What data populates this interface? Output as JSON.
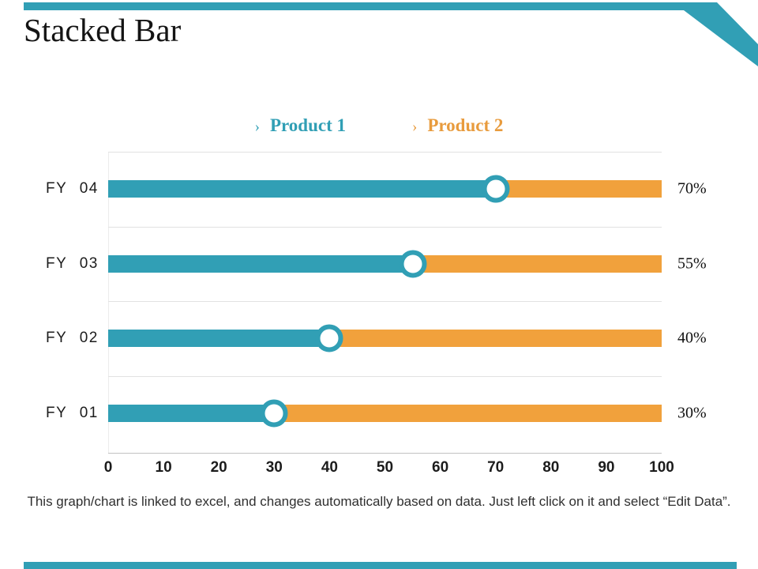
{
  "slide": {
    "title": "Stacked Bar",
    "footer": "This graph/chart is linked to excel, and changes automatically based on data. Just left click on it and select “Edit Data”.",
    "accent_color": "#319FB5"
  },
  "legend": {
    "items": [
      {
        "bullet": "›",
        "label": "Product 1",
        "color": "#319FB5"
      },
      {
        "bullet": "›",
        "label": "Product 2",
        "color": "#E89B3D"
      }
    ]
  },
  "chart_data": {
    "type": "bar",
    "orientation": "horizontal-stacked",
    "title": "Stacked Bar",
    "categories": [
      "FY 04",
      "FY 03",
      "FY 02",
      "FY 01"
    ],
    "series": [
      {
        "name": "Product 1",
        "color": "#319FB5",
        "values": [
          70,
          55,
          40,
          30
        ]
      },
      {
        "name": "Product 2",
        "color": "#F1A13C",
        "values": [
          30,
          45,
          60,
          70
        ]
      }
    ],
    "value_labels": [
      "70%",
      "55%",
      "40%",
      "30%"
    ],
    "x_ticks": [
      "0",
      "10",
      "20",
      "30",
      "40",
      "50",
      "60",
      "70",
      "80",
      "90",
      "100"
    ],
    "xlim": [
      0,
      100
    ],
    "grid": true,
    "legend_position": "top",
    "marker": "white-circle-teal-ring-at-series-boundary"
  }
}
